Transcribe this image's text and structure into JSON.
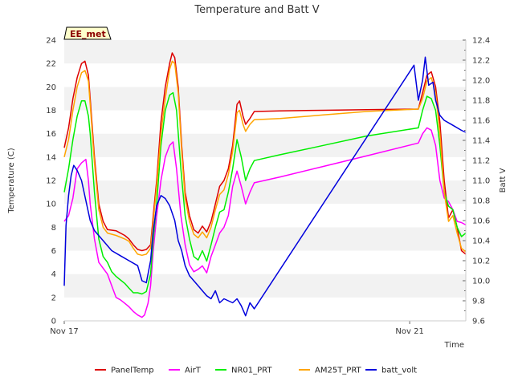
{
  "chart_data": {
    "type": "line",
    "title": "Temperature and Batt V",
    "xlabel": "Time",
    "ylabel": "Temperature (C)",
    "y2label": "Batt V",
    "site_label": "EE_met",
    "x_unit": "days since Nov 17",
    "xlim": [
      0,
      4.65
    ],
    "x_ticks": [
      {
        "value": 0,
        "label": "Nov 17"
      },
      {
        "value": 4.0,
        "label": "Nov 21"
      }
    ],
    "ylim": [
      0,
      24
    ],
    "y_ticks": [
      0,
      2,
      4,
      6,
      8,
      10,
      12,
      14,
      16,
      18,
      20,
      22,
      24
    ],
    "y2lim": [
      9.6,
      12.4
    ],
    "y2_ticks": [
      "9.6",
      "9.8",
      "10.0",
      "10.2",
      "10.4",
      "10.6",
      "10.8",
      "11.0",
      "11.2",
      "11.4",
      "11.6",
      "11.8",
      "12.0",
      "12.2",
      "12.4"
    ],
    "legend_position": "bottom-center",
    "series": [
      {
        "name": "PanelTemp",
        "color": "#dd0000",
        "axis": "left",
        "points": [
          [
            0,
            14.8
          ],
          [
            0.05,
            16.5
          ],
          [
            0.1,
            19
          ],
          [
            0.15,
            20.8
          ],
          [
            0.2,
            22
          ],
          [
            0.24,
            22.2
          ],
          [
            0.28,
            21
          ],
          [
            0.3,
            19
          ],
          [
            0.35,
            14
          ],
          [
            0.4,
            10
          ],
          [
            0.45,
            8.5
          ],
          [
            0.5,
            7.8
          ],
          [
            0.6,
            7.7
          ],
          [
            0.7,
            7.3
          ],
          [
            0.75,
            7
          ],
          [
            0.8,
            6.5
          ],
          [
            0.85,
            6.1
          ],
          [
            0.9,
            6
          ],
          [
            0.95,
            6.1
          ],
          [
            1.0,
            6.5
          ],
          [
            1.03,
            9
          ],
          [
            1.07,
            12
          ],
          [
            1.12,
            17
          ],
          [
            1.17,
            20
          ],
          [
            1.22,
            22
          ],
          [
            1.25,
            22.9
          ],
          [
            1.28,
            22.5
          ],
          [
            1.32,
            20
          ],
          [
            1.36,
            15
          ],
          [
            1.4,
            11
          ],
          [
            1.45,
            9
          ],
          [
            1.5,
            7.8
          ],
          [
            1.55,
            7.5
          ],
          [
            1.6,
            8.1
          ],
          [
            1.65,
            7.6
          ],
          [
            1.7,
            8.5
          ],
          [
            1.75,
            10
          ],
          [
            1.8,
            11.5
          ],
          [
            1.85,
            12
          ],
          [
            1.9,
            13
          ],
          [
            1.95,
            15
          ],
          [
            2.0,
            18.5
          ],
          [
            2.03,
            18.8
          ],
          [
            2.07,
            17.5
          ],
          [
            2.1,
            16.8
          ],
          [
            2.15,
            17.3
          ],
          [
            2.2,
            17.9
          ],
          [
            2.5,
            17.95
          ],
          [
            3.0,
            18.0
          ],
          [
            3.5,
            18.05
          ],
          [
            4.1,
            18.1
          ],
          [
            4.15,
            19.5
          ],
          [
            4.2,
            21
          ],
          [
            4.25,
            21.3
          ],
          [
            4.3,
            20
          ],
          [
            4.35,
            17
          ],
          [
            4.4,
            12
          ],
          [
            4.45,
            8.8
          ],
          [
            4.5,
            9.5
          ],
          [
            4.55,
            8
          ],
          [
            4.6,
            6
          ],
          [
            4.65,
            5.7
          ]
        ]
      },
      {
        "name": "AirT",
        "color": "#ff00ff",
        "axis": "left",
        "points": [
          [
            0,
            8.5
          ],
          [
            0.05,
            9
          ],
          [
            0.1,
            10.5
          ],
          [
            0.15,
            13
          ],
          [
            0.2,
            13.5
          ],
          [
            0.25,
            13.8
          ],
          [
            0.28,
            12
          ],
          [
            0.3,
            10
          ],
          [
            0.35,
            7
          ],
          [
            0.4,
            5
          ],
          [
            0.45,
            4.5
          ],
          [
            0.5,
            4
          ],
          [
            0.55,
            3
          ],
          [
            0.6,
            2
          ],
          [
            0.65,
            1.8
          ],
          [
            0.7,
            1.5
          ],
          [
            0.75,
            1.2
          ],
          [
            0.8,
            0.8
          ],
          [
            0.85,
            0.5
          ],
          [
            0.9,
            0.3
          ],
          [
            0.93,
            0.5
          ],
          [
            0.97,
            1.5
          ],
          [
            1.0,
            3
          ],
          [
            1.03,
            6
          ],
          [
            1.07,
            9
          ],
          [
            1.12,
            12
          ],
          [
            1.17,
            14
          ],
          [
            1.22,
            15
          ],
          [
            1.26,
            15.3
          ],
          [
            1.3,
            13
          ],
          [
            1.35,
            9
          ],
          [
            1.4,
            6.5
          ],
          [
            1.45,
            4.8
          ],
          [
            1.5,
            4.2
          ],
          [
            1.55,
            4.4
          ],
          [
            1.6,
            4.7
          ],
          [
            1.65,
            4.1
          ],
          [
            1.7,
            5.5
          ],
          [
            1.75,
            6.5
          ],
          [
            1.8,
            7.5
          ],
          [
            1.85,
            8
          ],
          [
            1.9,
            9
          ],
          [
            1.95,
            11.5
          ],
          [
            2.0,
            12.8
          ],
          [
            2.05,
            11.5
          ],
          [
            2.1,
            10
          ],
          [
            2.15,
            11
          ],
          [
            2.2,
            11.8
          ],
          [
            2.5,
            12.3
          ],
          [
            3.0,
            13.2
          ],
          [
            3.5,
            14.1
          ],
          [
            4.1,
            15.2
          ],
          [
            4.15,
            16
          ],
          [
            4.2,
            16.5
          ],
          [
            4.25,
            16.3
          ],
          [
            4.3,
            15
          ],
          [
            4.35,
            12
          ],
          [
            4.4,
            10.5
          ],
          [
            4.45,
            10.2
          ],
          [
            4.5,
            9.5
          ],
          [
            4.55,
            8.5
          ],
          [
            4.6,
            8.4
          ],
          [
            4.65,
            8.2
          ]
        ]
      },
      {
        "name": "NR01_PRT",
        "color": "#00ee00",
        "axis": "left",
        "points": [
          [
            0,
            11
          ],
          [
            0.05,
            13
          ],
          [
            0.1,
            15.5
          ],
          [
            0.15,
            17.5
          ],
          [
            0.2,
            18.8
          ],
          [
            0.24,
            18.8
          ],
          [
            0.28,
            17.5
          ],
          [
            0.3,
            16
          ],
          [
            0.35,
            11
          ],
          [
            0.4,
            7
          ],
          [
            0.45,
            5.5
          ],
          [
            0.5,
            5
          ],
          [
            0.55,
            4.2
          ],
          [
            0.6,
            3.8
          ],
          [
            0.65,
            3.5
          ],
          [
            0.7,
            3.2
          ],
          [
            0.75,
            2.8
          ],
          [
            0.8,
            2.4
          ],
          [
            0.85,
            2.4
          ],
          [
            0.9,
            2.3
          ],
          [
            0.95,
            2.5
          ],
          [
            1.0,
            4
          ],
          [
            1.03,
            7
          ],
          [
            1.07,
            10
          ],
          [
            1.12,
            15
          ],
          [
            1.17,
            18
          ],
          [
            1.22,
            19.3
          ],
          [
            1.26,
            19.5
          ],
          [
            1.3,
            18
          ],
          [
            1.35,
            13
          ],
          [
            1.4,
            9
          ],
          [
            1.45,
            7
          ],
          [
            1.5,
            5.5
          ],
          [
            1.55,
            5.2
          ],
          [
            1.6,
            6
          ],
          [
            1.65,
            5.1
          ],
          [
            1.7,
            6.5
          ],
          [
            1.75,
            8
          ],
          [
            1.8,
            9.3
          ],
          [
            1.85,
            9.5
          ],
          [
            1.9,
            11
          ],
          [
            1.95,
            13
          ],
          [
            2.0,
            15.5
          ],
          [
            2.05,
            14
          ],
          [
            2.1,
            12
          ],
          [
            2.15,
            13
          ],
          [
            2.2,
            13.7
          ],
          [
            2.5,
            14.2
          ],
          [
            3.0,
            15
          ],
          [
            3.5,
            15.8
          ],
          [
            4.1,
            16.5
          ],
          [
            4.15,
            18
          ],
          [
            4.2,
            19.2
          ],
          [
            4.25,
            19.0
          ],
          [
            4.3,
            18
          ],
          [
            4.35,
            15
          ],
          [
            4.4,
            11
          ],
          [
            4.45,
            9.8
          ],
          [
            4.5,
            9.5
          ],
          [
            4.55,
            8
          ],
          [
            4.6,
            7.2
          ],
          [
            4.65,
            7.5
          ]
        ]
      },
      {
        "name": "AM25T_PRT",
        "color": "#ffa500",
        "axis": "left",
        "points": [
          [
            0,
            14
          ],
          [
            0.05,
            15.5
          ],
          [
            0.1,
            18
          ],
          [
            0.15,
            20
          ],
          [
            0.2,
            21.2
          ],
          [
            0.24,
            21.4
          ],
          [
            0.28,
            20.5
          ],
          [
            0.3,
            18.5
          ],
          [
            0.35,
            13.5
          ],
          [
            0.4,
            9.5
          ],
          [
            0.45,
            8
          ],
          [
            0.5,
            7.5
          ],
          [
            0.6,
            7.3
          ],
          [
            0.7,
            7
          ],
          [
            0.75,
            6.8
          ],
          [
            0.8,
            6.2
          ],
          [
            0.85,
            5.7
          ],
          [
            0.9,
            5.6
          ],
          [
            0.95,
            5.7
          ],
          [
            1.0,
            6.2
          ],
          [
            1.03,
            8.5
          ],
          [
            1.07,
            11.5
          ],
          [
            1.12,
            16
          ],
          [
            1.17,
            19
          ],
          [
            1.22,
            21.5
          ],
          [
            1.25,
            22.2
          ],
          [
            1.28,
            22
          ],
          [
            1.32,
            19.5
          ],
          [
            1.36,
            14.5
          ],
          [
            1.4,
            10.5
          ],
          [
            1.45,
            8.5
          ],
          [
            1.5,
            7.4
          ],
          [
            1.55,
            7.1
          ],
          [
            1.6,
            7.6
          ],
          [
            1.65,
            7.1
          ],
          [
            1.7,
            8
          ],
          [
            1.75,
            9.5
          ],
          [
            1.8,
            10.8
          ],
          [
            1.85,
            11.2
          ],
          [
            1.9,
            12.5
          ],
          [
            1.95,
            14.5
          ],
          [
            2.0,
            17.8
          ],
          [
            2.03,
            18
          ],
          [
            2.07,
            16.8
          ],
          [
            2.1,
            16.2
          ],
          [
            2.15,
            16.8
          ],
          [
            2.2,
            17.2
          ],
          [
            2.5,
            17.3
          ],
          [
            3.0,
            17.6
          ],
          [
            3.5,
            17.9
          ],
          [
            4.1,
            18.1
          ],
          [
            4.15,
            19
          ],
          [
            4.2,
            20.5
          ],
          [
            4.25,
            20.8
          ],
          [
            4.3,
            19.5
          ],
          [
            4.35,
            16
          ],
          [
            4.4,
            11
          ],
          [
            4.45,
            8.5
          ],
          [
            4.5,
            9
          ],
          [
            4.55,
            7.5
          ],
          [
            4.6,
            6.2
          ],
          [
            4.65,
            5.9
          ]
        ]
      },
      {
        "name": "batt_volt",
        "color": "#0000dd",
        "axis": "right",
        "points": [
          [
            0,
            9.95
          ],
          [
            0.02,
            10.55
          ],
          [
            0.05,
            10.85
          ],
          [
            0.08,
            11.05
          ],
          [
            0.11,
            11.15
          ],
          [
            0.15,
            11.1
          ],
          [
            0.2,
            11.0
          ],
          [
            0.25,
            10.8
          ],
          [
            0.3,
            10.6
          ],
          [
            0.35,
            10.5
          ],
          [
            0.45,
            10.4
          ],
          [
            0.55,
            10.3
          ],
          [
            0.65,
            10.25
          ],
          [
            0.75,
            10.2
          ],
          [
            0.85,
            10.15
          ],
          [
            0.9,
            10.0
          ],
          [
            0.95,
            9.98
          ],
          [
            1.0,
            10.2
          ],
          [
            1.03,
            10.5
          ],
          [
            1.07,
            10.75
          ],
          [
            1.12,
            10.85
          ],
          [
            1.17,
            10.82
          ],
          [
            1.22,
            10.75
          ],
          [
            1.28,
            10.6
          ],
          [
            1.32,
            10.4
          ],
          [
            1.36,
            10.3
          ],
          [
            1.4,
            10.15
          ],
          [
            1.45,
            10.05
          ],
          [
            1.5,
            10.0
          ],
          [
            1.55,
            9.95
          ],
          [
            1.6,
            9.9
          ],
          [
            1.65,
            9.85
          ],
          [
            1.7,
            9.82
          ],
          [
            1.75,
            9.9
          ],
          [
            1.8,
            9.78
          ],
          [
            1.85,
            9.82
          ],
          [
            1.9,
            9.8
          ],
          [
            1.95,
            9.78
          ],
          [
            2.0,
            9.82
          ],
          [
            2.05,
            9.75
          ],
          [
            2.1,
            9.65
          ],
          [
            2.15,
            9.78
          ],
          [
            2.2,
            9.72
          ],
          [
            4.05,
            12.15
          ],
          [
            4.1,
            11.8
          ],
          [
            4.15,
            12.0
          ],
          [
            4.18,
            12.23
          ],
          [
            4.22,
            11.95
          ],
          [
            4.27,
            11.98
          ],
          [
            4.3,
            11.8
          ],
          [
            4.35,
            11.65
          ],
          [
            4.4,
            11.6
          ],
          [
            4.5,
            11.55
          ],
          [
            4.6,
            11.5
          ],
          [
            4.65,
            11.48
          ]
        ]
      }
    ]
  }
}
